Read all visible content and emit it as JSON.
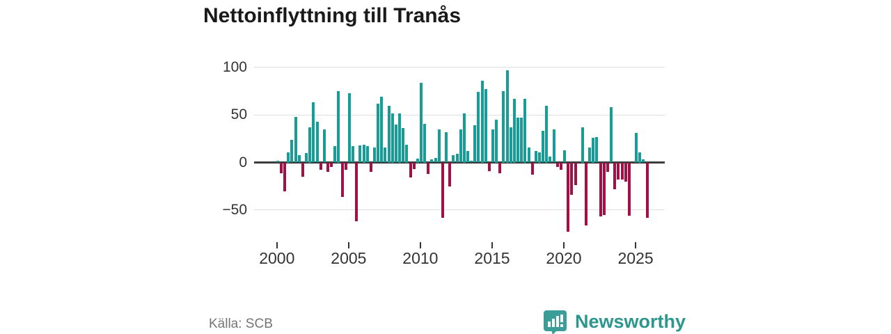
{
  "title": "Nettoinflyttning till Tranås",
  "footer": {
    "source": "Källa: SCB",
    "brand_name": "Newsworthy",
    "brand_color": "#2d968e"
  },
  "chart_data": {
    "type": "bar",
    "title": "Nettoinflyttning till Tranås",
    "xlabel": "",
    "ylabel": "",
    "y_ticks": [
      100,
      50,
      0,
      -50
    ],
    "y_tick_labels": [
      "100",
      "50",
      "0",
      "−50"
    ],
    "ylim": [
      -80,
      110
    ],
    "x_tick_years": [
      2000,
      2005,
      2010,
      2015,
      2020,
      2025
    ],
    "x_tick_labels": [
      "2000",
      "2005",
      "2010",
      "2015",
      "2020",
      "2025"
    ],
    "grid": "horizontal",
    "legend": "none",
    "positive_color": "#169d97",
    "negative_color": "#a21045",
    "period": "quarterly",
    "values_by_year": {
      "2000": [
        2,
        -11,
        -30,
        11
      ],
      "2001": [
        24,
        48,
        8,
        -15
      ],
      "2002": [
        10,
        37,
        63,
        43
      ],
      "2003": [
        -8,
        35,
        -10,
        -5
      ],
      "2004": [
        17,
        75,
        -36,
        -8
      ],
      "2005": [
        73,
        17,
        -62,
        18
      ],
      "2006": [
        19,
        17,
        -10,
        16
      ],
      "2007": [
        62,
        69,
        16,
        60
      ],
      "2008": [
        52,
        40,
        52,
        36
      ],
      "2009": [
        19,
        -16,
        -7,
        4
      ],
      "2010": [
        84,
        41,
        -12,
        3
      ],
      "2011": [
        5,
        35,
        -58,
        32
      ],
      "2012": [
        -25,
        8,
        9,
        35
      ],
      "2013": [
        52,
        12,
        2,
        39
      ],
      "2014": [
        74,
        86,
        77,
        -9
      ],
      "2015": [
        35,
        45,
        -11,
        75
      ],
      "2016": [
        97,
        37,
        67,
        47
      ],
      "2017": [
        47,
        67,
        16,
        -13
      ],
      "2018": [
        12,
        11,
        33,
        60
      ],
      "2019": [
        6,
        35,
        -5,
        -8
      ],
      "2020": [
        13,
        -73,
        -34,
        -24
      ],
      "2021": [
        0,
        37,
        -66,
        16
      ],
      "2022": [
        26,
        27,
        -57,
        -55
      ],
      "2023": [
        -10,
        58,
        -28,
        -18
      ],
      "2024": [
        -18,
        -20,
        -56,
        0
      ],
      "2025": [
        31,
        11,
        3,
        -58
      ]
    }
  }
}
